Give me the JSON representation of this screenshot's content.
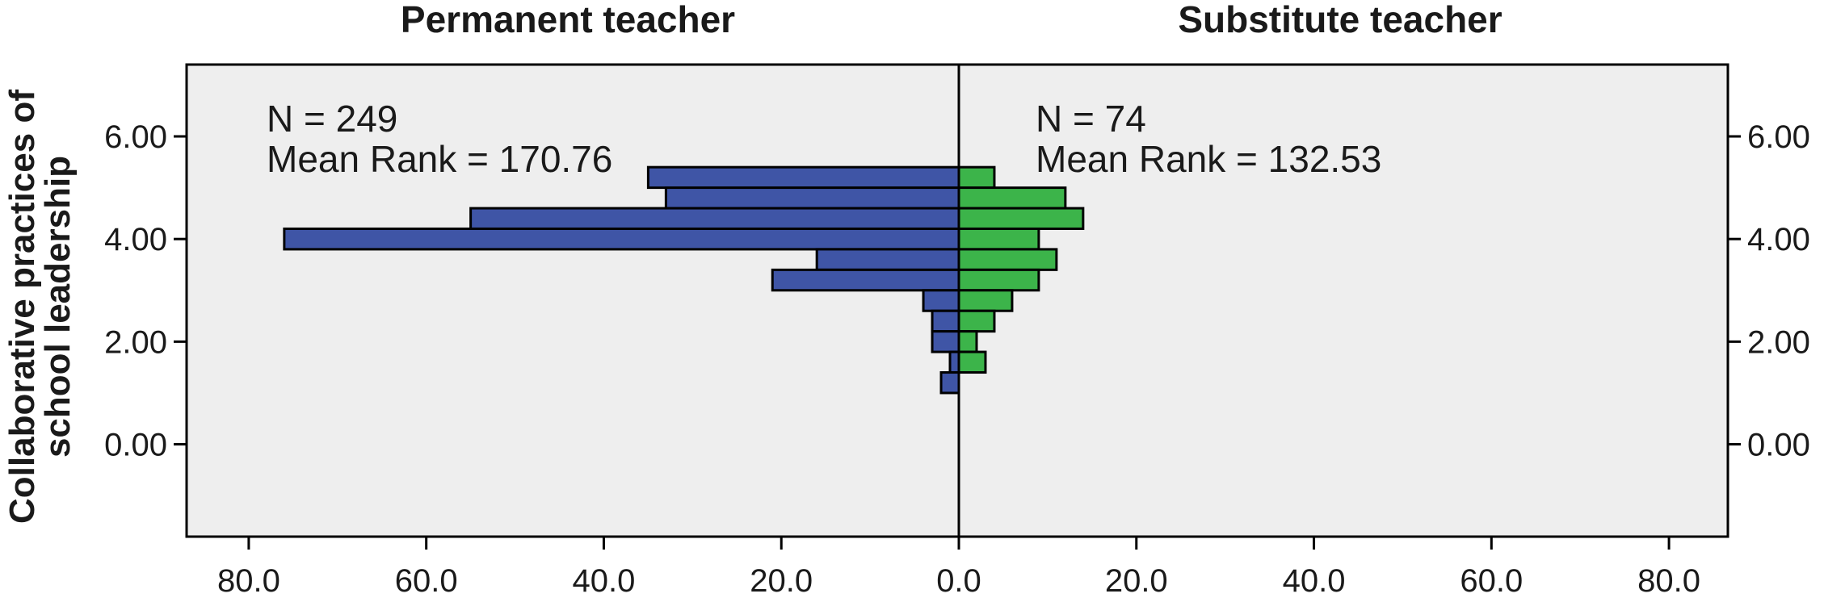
{
  "chart_data": {
    "type": "bar",
    "orientation": "horizontal-back-to-back",
    "ylabel_lines": [
      "Collaborative practices of",
      "school leadership"
    ],
    "ylim": [
      -1.8,
      7.4
    ],
    "yticks": [
      "0.00",
      "2.00",
      "4.00",
      "6.00"
    ],
    "ytick_values": [
      0,
      2,
      4,
      6
    ],
    "xlim": [
      0,
      87
    ],
    "xticks": [
      "80.0",
      "60.0",
      "40.0",
      "20.0",
      "0.0",
      "20.0",
      "40.0",
      "60.0",
      "80.0"
    ],
    "xtick_values": [
      -80,
      -60,
      -40,
      -20,
      0,
      20,
      40,
      60,
      80
    ],
    "bin_width": 0.4,
    "bin_centers": [
      5.2,
      4.8,
      4.4,
      4.0,
      3.6,
      3.2,
      2.8,
      2.4,
      2.0,
      1.6,
      1.2
    ],
    "grid": false,
    "series": [
      {
        "name": "Permanent teacher",
        "side": "left",
        "color": "#3f55a6",
        "values": [
          35,
          33,
          55,
          76,
          16,
          21,
          4,
          3,
          3,
          1,
          2
        ],
        "n_label": "N = 249",
        "mean_rank_label": "Mean Rank = 170.76"
      },
      {
        "name": "Substitute teacher",
        "side": "right",
        "color": "#3cb44a",
        "values": [
          4,
          12,
          14,
          9,
          11,
          9,
          6,
          4,
          2,
          3,
          0
        ],
        "n_label": "N = 74",
        "mean_rank_label": "Mean Rank = 132.53"
      }
    ],
    "plot_background": "#eeeeee"
  }
}
